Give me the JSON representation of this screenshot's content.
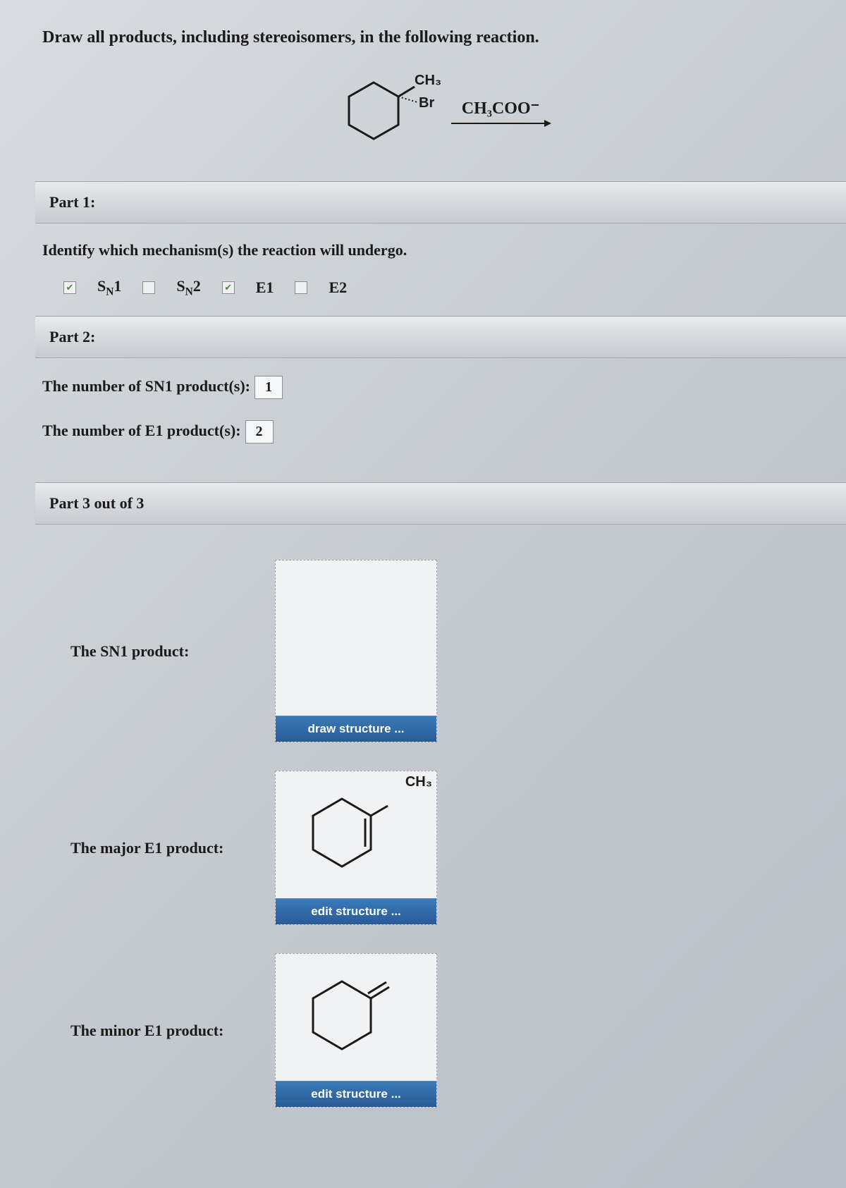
{
  "title": "Draw all products, including stereoisomers, in the following reaction.",
  "reaction": {
    "substrate_top": "CH₃",
    "substrate_side": "Br",
    "reagent": "CH₃COO⁻"
  },
  "part1": {
    "header": "Part 1:",
    "question": "Identify which mechanism(s) the reaction will undergo.",
    "options": [
      {
        "label_html": "S<sub>N</sub>1",
        "checked": true
      },
      {
        "label_html": "S<sub>N</sub>2",
        "checked": false
      },
      {
        "label_html": "E1",
        "checked": true
      },
      {
        "label_html": "E2",
        "checked": false
      }
    ]
  },
  "part2": {
    "header": "Part 2:",
    "rows": [
      {
        "label_html": "The number of S<sub>N</sub>1 product(s):",
        "value": "1"
      },
      {
        "label_html": "The number of E1 product(s):",
        "value": "2"
      }
    ]
  },
  "part3": {
    "header": "Part 3 out of 3",
    "products": [
      {
        "label_html": "The S<sub>N</sub>1 product:",
        "button": "draw structure ...",
        "structure": "empty"
      },
      {
        "label_html": "The major E1 product:",
        "button": "edit structure ...",
        "structure": "endo",
        "ch_label": "CH₃"
      },
      {
        "label_html": "The minor E1 product:",
        "button": "edit structure ...",
        "structure": "exo"
      }
    ]
  },
  "colors": {
    "button_bg_top": "#3a7ab8",
    "button_bg_bottom": "#2a5a98",
    "header_bg": "#d5d9dd",
    "body_bg": "#c5cad0",
    "text": "#1a1a1a",
    "box_border": "#a0a5aa"
  },
  "fonts": {
    "body": "Georgia, Times New Roman, serif",
    "button": "Arial, sans-serif",
    "title_size_pt": 18,
    "label_size_pt": 16
  }
}
